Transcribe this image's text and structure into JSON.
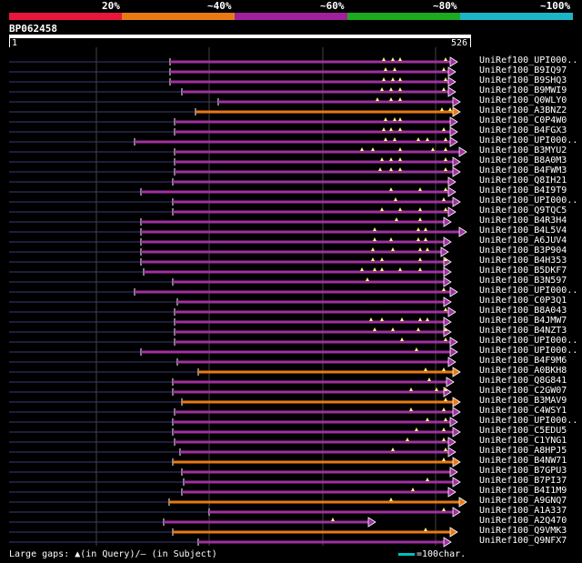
{
  "legend": {
    "segments": [
      {
        "label": "20%",
        "color": "#e8163c"
      },
      {
        "label": "~40%",
        "color": "#e87a14"
      },
      {
        "label": "~60%",
        "color": "#a0209c"
      },
      {
        "label": "~80%",
        "color": "#1eaa1e"
      },
      {
        "label": "~100%",
        "color": "#1eb4c8"
      }
    ]
  },
  "query": {
    "name": "BP062458",
    "start": "1",
    "end": "526",
    "length": 526
  },
  "hits": [
    {
      "label": "UniRef100_UPI000..",
      "color": "purple"
    },
    {
      "label": "UniRef100_B9IQ97",
      "color": "purple"
    },
    {
      "label": "UniRef100_B9SHQ3",
      "color": "purple"
    },
    {
      "label": "UniRef100_B9MWI9",
      "color": "purple"
    },
    {
      "label": "UniRef100_Q0WLY0",
      "color": "purple"
    },
    {
      "label": "UniRef100_A3BNZ2",
      "color": "orange"
    },
    {
      "label": "UniRef100_C0P4W0",
      "color": "purple"
    },
    {
      "label": "UniRef100_B4FGX3",
      "color": "purple"
    },
    {
      "label": "UniRef100_UPI000..",
      "color": "purple"
    },
    {
      "label": "UniRef100_B3MYU2",
      "color": "purple"
    },
    {
      "label": "UniRef100_B8A0M3",
      "color": "purple"
    },
    {
      "label": "UniRef100_B4FWM3",
      "color": "purple"
    },
    {
      "label": "UniRef100_Q8IH21",
      "color": "purple"
    },
    {
      "label": "UniRef100_B4I9T9",
      "color": "purple"
    },
    {
      "label": "UniRef100_UPI000..",
      "color": "purple"
    },
    {
      "label": "UniRef100_Q9TQC5",
      "color": "purple"
    },
    {
      "label": "UniRef100_B4R3H4",
      "color": "purple"
    },
    {
      "label": "UniRef100_B4L5V4",
      "color": "purple"
    },
    {
      "label": "UniRef100_A6JUV4",
      "color": "purple"
    },
    {
      "label": "UniRef100_B3P904",
      "color": "purple"
    },
    {
      "label": "UniRef100_B4H353",
      "color": "purple"
    },
    {
      "label": "UniRef100_B5DKF7",
      "color": "purple"
    },
    {
      "label": "UniRef100_B3N597",
      "color": "purple"
    },
    {
      "label": "UniRef100_UPI000..",
      "color": "purple"
    },
    {
      "label": "UniRef100_C0P3Q1",
      "color": "purple"
    },
    {
      "label": "UniRef100_B8A043",
      "color": "purple"
    },
    {
      "label": "UniRef100_B4JMW7",
      "color": "purple"
    },
    {
      "label": "UniRef100_B4NZT3",
      "color": "purple"
    },
    {
      "label": "UniRef100_UPI000..",
      "color": "purple"
    },
    {
      "label": "UniRef100_UPI000..",
      "color": "purple"
    },
    {
      "label": "UniRef100_B4F9M6",
      "color": "purple"
    },
    {
      "label": "UniRef100_A0BKH8",
      "color": "orange"
    },
    {
      "label": "UniRef100_Q8G841",
      "color": "purple"
    },
    {
      "label": "UniRef100_C2GW07",
      "color": "purple"
    },
    {
      "label": "UniRef100_B3MAV9",
      "color": "orange"
    },
    {
      "label": "UniRef100_C4WSY1",
      "color": "purple"
    },
    {
      "label": "UniRef100_UPI000..",
      "color": "purple"
    },
    {
      "label": "UniRef100_C5EDU5",
      "color": "purple"
    },
    {
      "label": "UniRef100_C1YNG1",
      "color": "purple"
    },
    {
      "label": "UniRef100_A8HPJ5",
      "color": "purple"
    },
    {
      "label": "UniRef100_B4NW71",
      "color": "orange"
    },
    {
      "label": "UniRef100_B7GPU3",
      "color": "purple"
    },
    {
      "label": "UniRef100_B7PI37",
      "color": "purple"
    },
    {
      "label": "UniRef100_B4I1M9",
      "color": "purple"
    },
    {
      "label": "UniRef100_A9GNQ7",
      "color": "orange"
    },
    {
      "label": "UniRef100_A1A337",
      "color": "purple"
    },
    {
      "label": "UniRef100_A2Q470",
      "color": "purple"
    },
    {
      "label": "UniRef100_Q9VMK3",
      "color": "orange"
    },
    {
      "label": "UniRef100_Q9NFX7",
      "color": "purple"
    }
  ],
  "footer": {
    "gaps_label": "Large gaps: ▲(in Query)/– (in Subject)",
    "scale_label": "=100char."
  },
  "colors": {
    "purple": "#a030a0",
    "orange": "#e87a14",
    "bg": "#000000",
    "guide": "#444444",
    "tick": "#ffff80"
  }
}
